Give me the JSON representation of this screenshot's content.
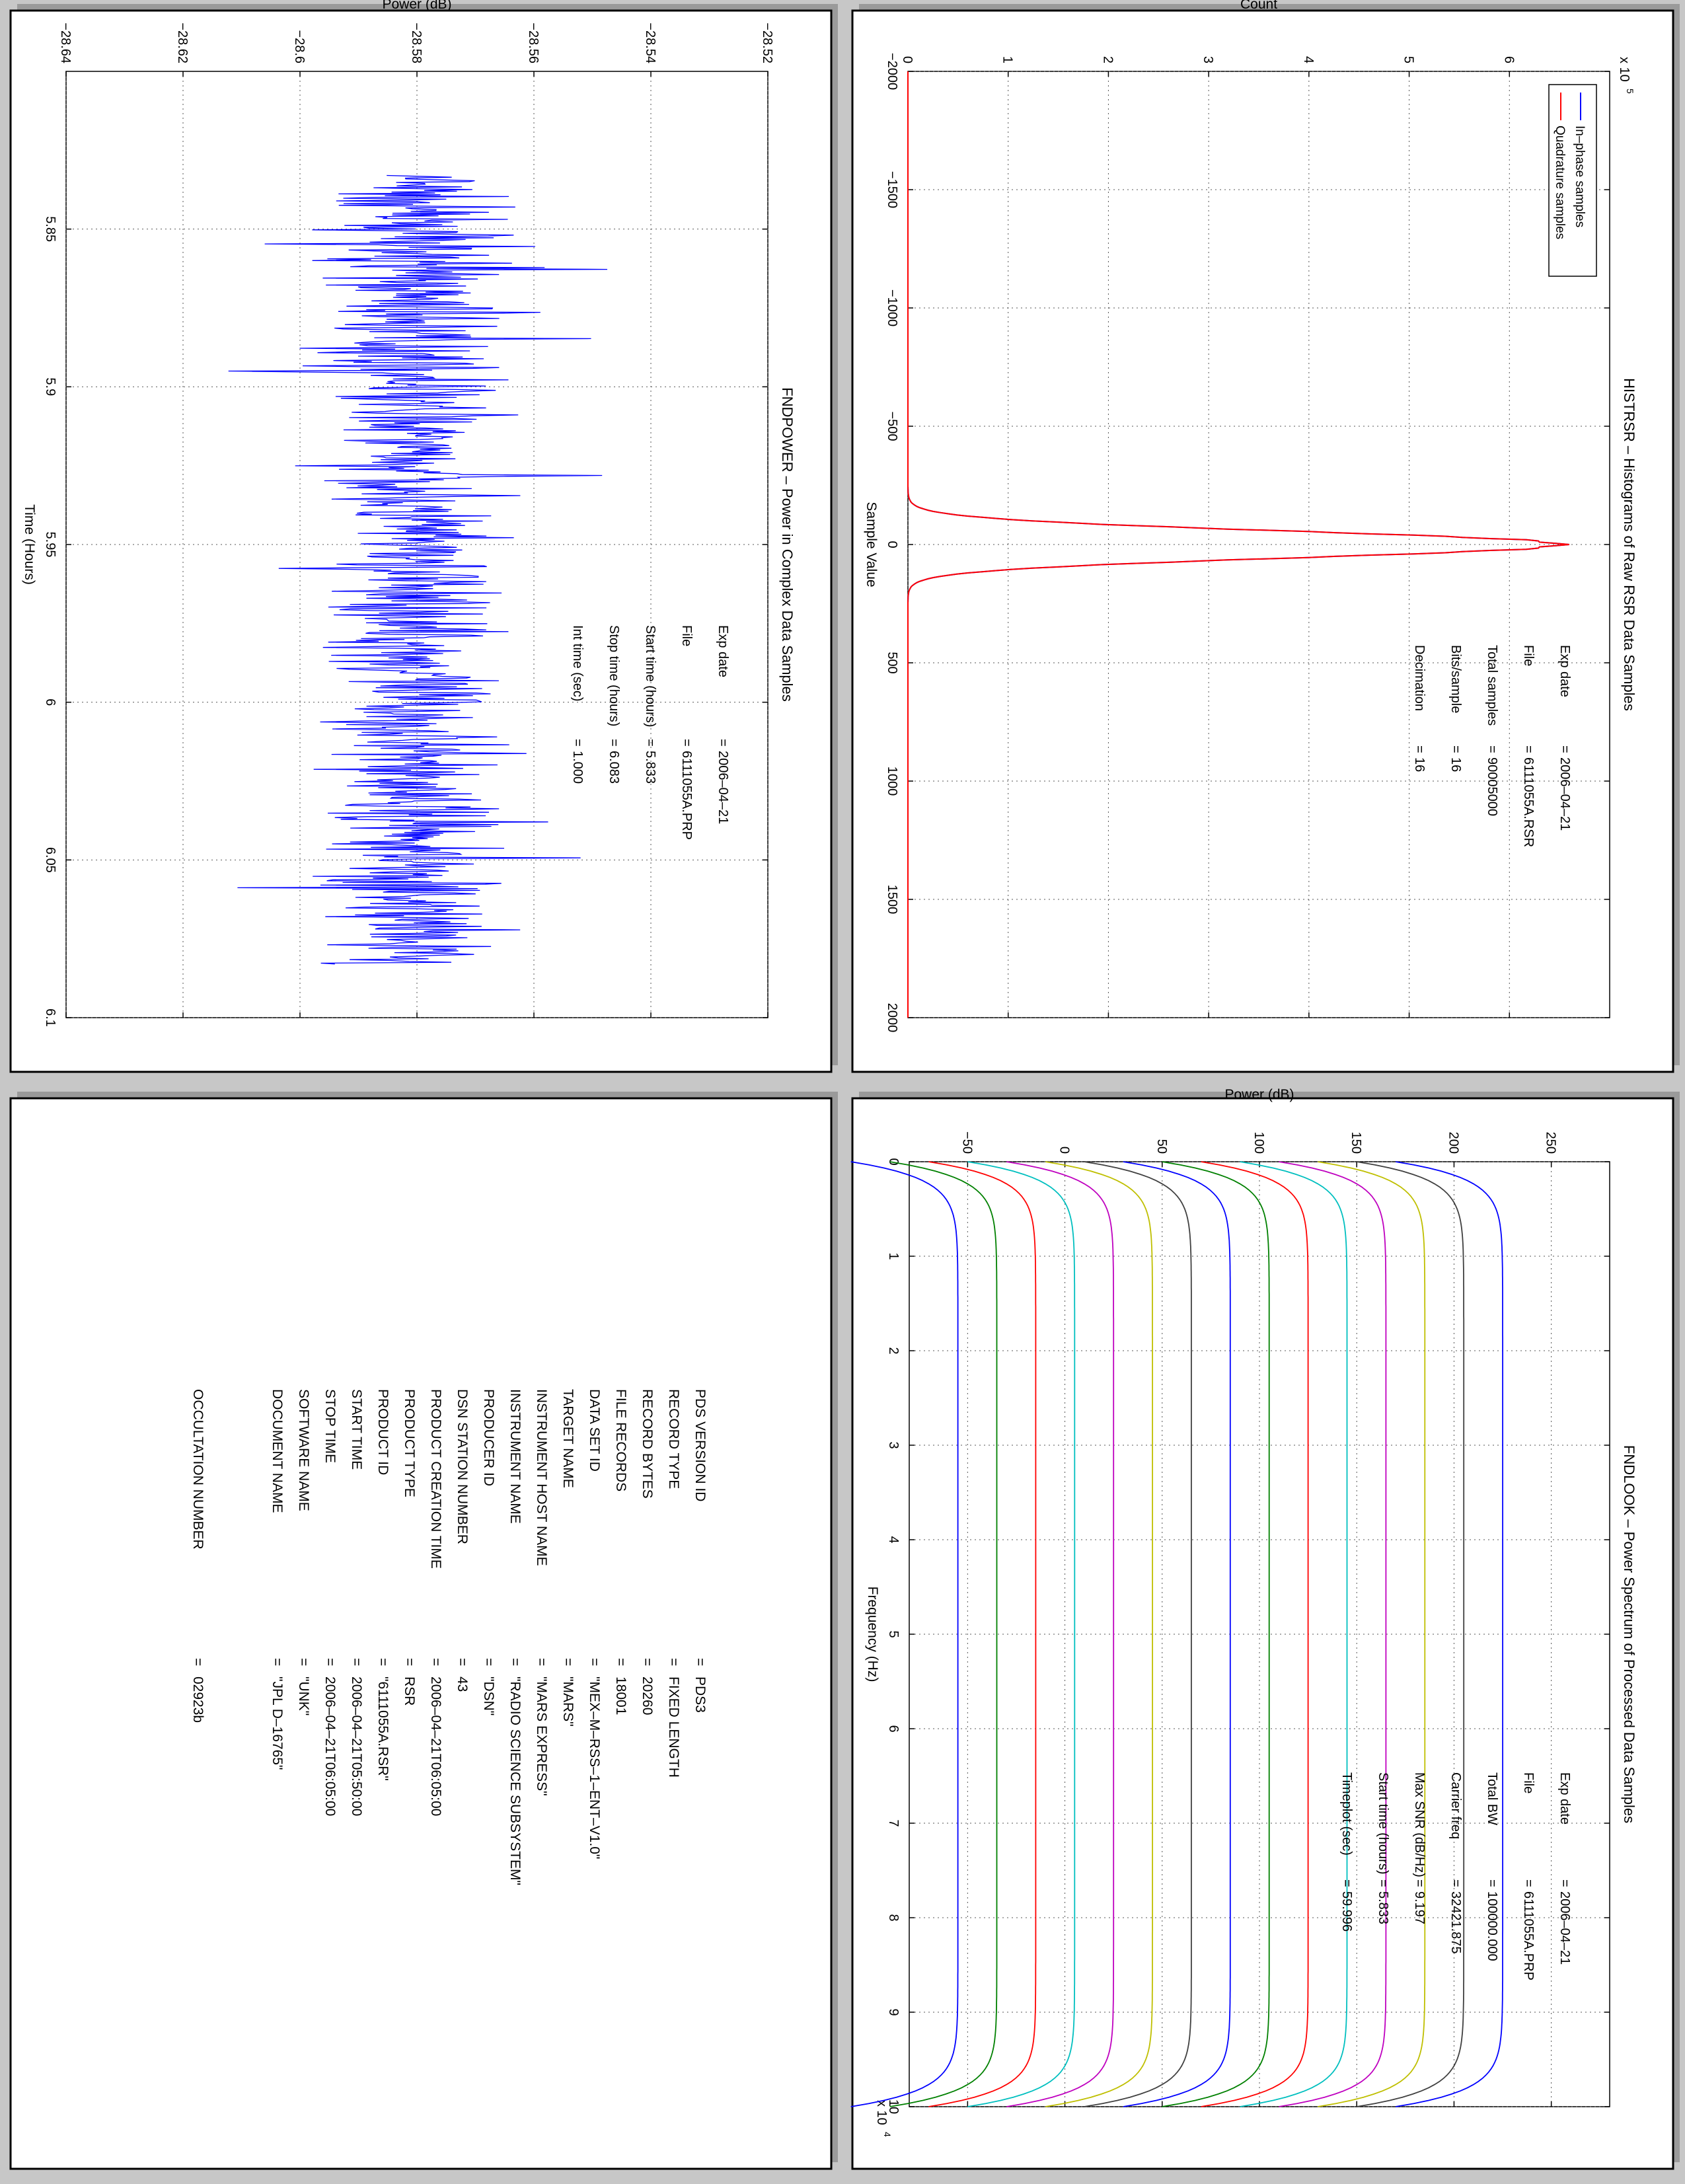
{
  "chart_data": [
    {
      "panel": "top-left",
      "type": "line",
      "title": "FNDPOWER – Power in Complex Data Samples",
      "xlabel": "Time (Hours)",
      "ylabel": "Power (dB)",
      "xlim": [
        5.8,
        6.1
      ],
      "ylim": [
        -28.64,
        -28.52
      ],
      "xticks": [
        "5.85",
        "5.9",
        "5.95",
        "6",
        "6.05",
        "6.1"
      ],
      "yticks": [
        "−28.64",
        "−28.62",
        "−28.6",
        "−28.58",
        "−28.56",
        "−28.54",
        "−28.52"
      ],
      "grid": true,
      "series": [
        {
          "color": "#0000ff",
          "x_range": [
            5.833,
            6.083
          ],
          "mean": -28.581,
          "spread": 0.009,
          "min": -28.615,
          "max": -28.547
        }
      ],
      "info": [
        {
          "label": "Exp date",
          "value": "2006–04–21"
        },
        {
          "label": "File",
          "value": "6111055A.PRP"
        },
        {
          "label": "Start time (hours)",
          "value": "5.833"
        },
        {
          "label": "Stop time (hours)",
          "value": "6.083"
        },
        {
          "label": "Int time (sec)",
          "value": "1.000"
        }
      ]
    },
    {
      "panel": "top-right",
      "type": "line",
      "title": "HISTRSR – Histograms of Raw RSR Data Samples",
      "xlabel": "Sample Value",
      "ylabel": "Count",
      "y_multiplier": "x 10^5",
      "xlim": [
        -2000,
        2000
      ],
      "ylim": [
        0,
        7
      ],
      "xticks": [
        "−2000",
        "−1500",
        "−1000",
        "−500",
        "0",
        "500",
        "1000",
        "1500",
        "2000"
      ],
      "yticks": [
        "0",
        "1",
        "2",
        "3",
        "4",
        "5",
        "6"
      ],
      "grid": true,
      "legend": {
        "position": "top-left",
        "entries": [
          {
            "name": "In–phase samples",
            "color": "#0000ff"
          },
          {
            "name": "Quadrature samples",
            "color": "#ff0000"
          }
        ]
      },
      "series": [
        {
          "name": "In–phase samples",
          "color": "#0000ff",
          "peak": 6.5,
          "center": 0,
          "sigma": 55
        },
        {
          "name": "Quadrature samples",
          "color": "#ff0000",
          "peak": 6.5,
          "center": 0,
          "sigma": 55
        }
      ],
      "info": [
        {
          "label": "Exp date",
          "value": "2006–04–21"
        },
        {
          "label": "File",
          "value": "6111055A.RSR"
        },
        {
          "label": "Total samples",
          "value": "90005000"
        },
        {
          "label": "Bits/sample",
          "value": "16"
        },
        {
          "label": "Decimation",
          "value": "16"
        }
      ]
    },
    {
      "panel": "bottom-right",
      "type": "line",
      "title": "FNDLOOK – Power Spectrum of Processed Data Samples",
      "xlabel": "Frequency (Hz)",
      "ylabel": "Power (dB)",
      "x_multiplier": "x 10^4",
      "xlim": [
        0,
        10
      ],
      "ylim": [
        -80,
        280
      ],
      "xticks": [
        "0",
        "1",
        "2",
        "3",
        "4",
        "5",
        "6",
        "7",
        "8",
        "9",
        "10"
      ],
      "yticks": [
        "−50",
        "0",
        "50",
        "100",
        "150",
        "200",
        "250"
      ],
      "grid": true,
      "series": [
        {
          "color": "#0000ff",
          "plateau": -55
        },
        {
          "color": "#008000",
          "plateau": -35
        },
        {
          "color": "#ff0000",
          "plateau": -15
        },
        {
          "color": "#00bfbf",
          "plateau": 5
        },
        {
          "color": "#bf00bf",
          "plateau": 25
        },
        {
          "color": "#bfbf00",
          "plateau": 45
        },
        {
          "color": "#404040",
          "plateau": 65
        },
        {
          "color": "#0000ff",
          "plateau": 85
        },
        {
          "color": "#008000",
          "plateau": 105
        },
        {
          "color": "#ff0000",
          "plateau": 125
        },
        {
          "color": "#00bfbf",
          "plateau": 145
        },
        {
          "color": "#bf00bf",
          "plateau": 165
        },
        {
          "color": "#bfbf00",
          "plateau": 185
        },
        {
          "color": "#404040",
          "plateau": 205
        },
        {
          "color": "#0000ff",
          "plateau": 225
        }
      ],
      "info": [
        {
          "label": "Exp date",
          "value": "2006–04–21"
        },
        {
          "label": "File",
          "value": "6111055A.PRP"
        },
        {
          "label": "Total BW",
          "value": "100000.000"
        },
        {
          "label": "Carrier freq",
          "value": "32421.875"
        },
        {
          "label": "Max SNR (dB/Hz)",
          "value": "9.197"
        },
        {
          "label": "Start time (hours)",
          "value": "5.833"
        },
        {
          "label": "Timeplot (sec)",
          "value": "59.996"
        }
      ]
    },
    {
      "panel": "bottom-left",
      "type": "table",
      "rows": [
        {
          "key": "PDS VERSION ID",
          "value": "PDS3"
        },
        {
          "key": "RECORD TYPE",
          "value": "FIXED LENGTH"
        },
        {
          "key": "RECORD BYTES",
          "value": "20260"
        },
        {
          "key": "FILE RECORDS",
          "value": "18001"
        },
        {
          "key": "DATA SET ID",
          "value": "\"MEX–M–RSS–1–ENT–V1.0\""
        },
        {
          "key": "TARGET NAME",
          "value": "\"MARS\""
        },
        {
          "key": "INSTRUMENT HOST NAME",
          "value": "\"MARS EXPRESS\""
        },
        {
          "key": "INSTRUMENT NAME",
          "value": "\"RADIO SCIENCE SUBSYSTEM\""
        },
        {
          "key": "PRODUCER ID",
          "value": "\"DSN\""
        },
        {
          "key": "DSN STATION NUMBER",
          "value": "43"
        },
        {
          "key": "PRODUCT CREATION TIME",
          "value": "2006–04–21T06:05:00"
        },
        {
          "key": "PRODUCT TYPE",
          "value": "RSR"
        },
        {
          "key": "PRODUCT ID",
          "value": "\"6111055A.RSR\""
        },
        {
          "key": "START TIME",
          "value": "2006–04–21T05:50:00"
        },
        {
          "key": "STOP TIME",
          "value": "2006–04–21T06:05:00"
        },
        {
          "key": "SOFTWARE NAME",
          "value": "\"UNK\""
        },
        {
          "key": "DOCUMENT NAME",
          "value": "\"JPL D–16765\""
        },
        {
          "key": "OCCULTATION NUMBER",
          "value": "02923b",
          "separate": true
        }
      ]
    }
  ]
}
